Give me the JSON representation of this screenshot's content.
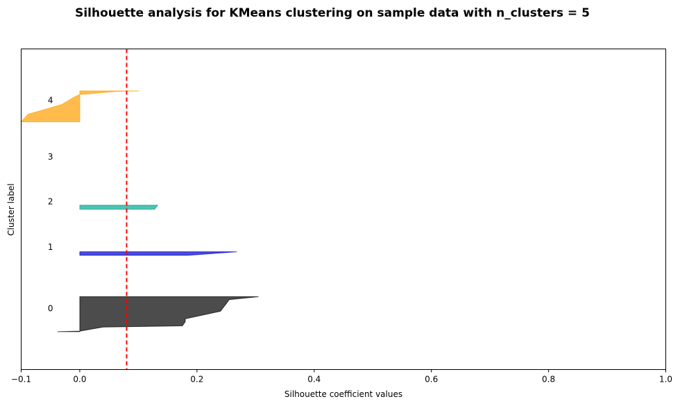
{
  "chart_data": {
    "type": "area",
    "title": "Silhouette analysis for KMeans clustering on sample data with n_clusters = 5",
    "xlabel": "Silhouette coefficient values",
    "ylabel": "Cluster label",
    "xlim": [
      -0.1,
      1.0
    ],
    "ylim": [
      0,
      55
    ],
    "xticks": [
      -0.1,
      0.0,
      0.2,
      0.4,
      0.6,
      0.8,
      1.0
    ],
    "xtick_labels": [
      "−0.1",
      "0.0",
      "0.2",
      "0.4",
      "0.6",
      "0.8",
      "1.0"
    ],
    "grid": false,
    "average_silhouette_score": 0.08,
    "average_line_color": "#ff0000",
    "clusters": [
      {
        "label": "0",
        "label_y": 10.5,
        "color": "#000000",
        "y_lower": 6.5,
        "y_upper": 12.5,
        "profile": [
          [
            6.5,
            -0.038
          ],
          [
            6.6,
            0.0
          ],
          [
            7.3,
            0.04
          ],
          [
            7.5,
            0.175
          ],
          [
            8.2,
            0.18
          ],
          [
            8.7,
            0.18
          ],
          [
            9.8,
            0.23
          ],
          [
            10.0,
            0.24
          ],
          [
            11.3,
            0.25
          ],
          [
            12.0,
            0.255
          ],
          [
            12.5,
            0.305
          ]
        ]
      },
      {
        "label": "1",
        "label_y": 21,
        "color": "#0000cc",
        "y_lower": 19.6,
        "y_upper": 20.2,
        "profile": [
          [
            19.6,
            0.185
          ],
          [
            20.2,
            0.268
          ]
        ]
      },
      {
        "label": "2",
        "label_y": 28.8,
        "color": "#00a98f",
        "y_lower": 27.5,
        "y_upper": 28.2,
        "profile": [
          [
            27.5,
            0.128
          ],
          [
            28.2,
            0.133
          ]
        ]
      },
      {
        "label": "3",
        "label_y": 36.5,
        "color": "#9400d3",
        "y_lower": 36.5,
        "y_upper": 36.5,
        "profile": []
      },
      {
        "label": "4",
        "label_y": 46.2,
        "color": "#ffa000",
        "y_lower": 42.5,
        "y_upper": 47.8,
        "profile": [
          [
            42.5,
            -0.1
          ],
          [
            43.8,
            -0.088
          ],
          [
            44.6,
            -0.06
          ],
          [
            45.5,
            -0.03
          ],
          [
            46.7,
            -0.01
          ],
          [
            47.2,
            0.0
          ],
          [
            47.3,
            0.015
          ],
          [
            47.7,
            0.06
          ],
          [
            47.8,
            0.102
          ]
        ]
      }
    ]
  }
}
